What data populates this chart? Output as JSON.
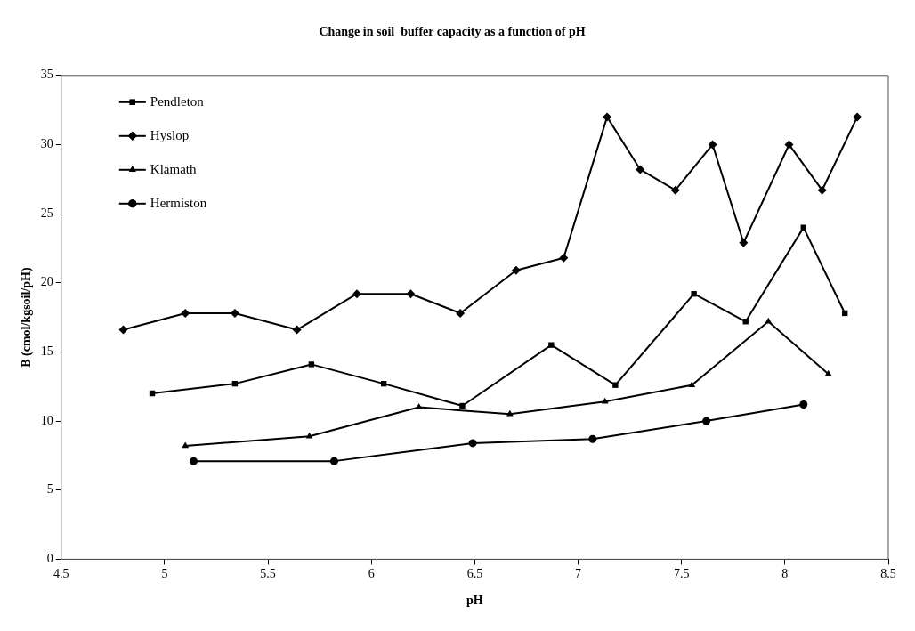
{
  "chart_data": {
    "type": "line",
    "title": "Change in soil  buffer capacity as a function of pH",
    "xlabel": "pH",
    "ylabel": "B (cmol/kgsoil/pH)",
    "xlim": [
      4.5,
      8.5
    ],
    "xticks": [
      4.5,
      5,
      5.5,
      6,
      6.5,
      7,
      7.5,
      8,
      8.5
    ],
    "ylim": [
      0,
      35
    ],
    "yticks": [
      0,
      5,
      10,
      15,
      20,
      25,
      30,
      35
    ],
    "grid": false,
    "legend": "top left",
    "line_style": "solid",
    "series": [
      {
        "name": "Pendleton",
        "color": "#000000",
        "marker": "square",
        "x": [
          4.94,
          5.34,
          5.71,
          6.06,
          6.44,
          6.87,
          7.18,
          7.56,
          7.81,
          8.09,
          8.29
        ],
        "values": [
          12.0,
          12.7,
          14.1,
          12.7,
          11.1,
          15.5,
          12.6,
          19.2,
          17.2,
          24.0,
          17.8
        ]
      },
      {
        "name": "Hyslop",
        "color": "#000000",
        "marker": "diamond",
        "x": [
          4.8,
          5.1,
          5.34,
          5.64,
          5.93,
          6.19,
          6.43,
          6.7,
          6.93,
          7.14,
          7.3,
          7.47,
          7.65,
          7.8,
          8.02,
          8.18,
          8.35
        ],
        "values": [
          16.6,
          17.8,
          17.8,
          16.6,
          19.2,
          19.2,
          17.8,
          20.9,
          21.8,
          32.0,
          28.2,
          26.7,
          30.0,
          22.9,
          30.0,
          26.7,
          32.0
        ]
      },
      {
        "name": "Klamath",
        "color": "#000000",
        "marker": "triangle",
        "x": [
          5.1,
          5.7,
          6.23,
          6.67,
          7.13,
          7.55,
          7.92,
          8.21
        ],
        "values": [
          8.2,
          8.9,
          11.0,
          10.5,
          11.4,
          12.6,
          17.2,
          13.4
        ]
      },
      {
        "name": "Hermiston",
        "color": "#000000",
        "marker": "circle",
        "x": [
          5.14,
          5.82,
          6.49,
          7.07,
          7.62,
          8.09
        ],
        "values": [
          7.1,
          7.1,
          8.4,
          8.7,
          10.0,
          11.2
        ]
      }
    ]
  }
}
